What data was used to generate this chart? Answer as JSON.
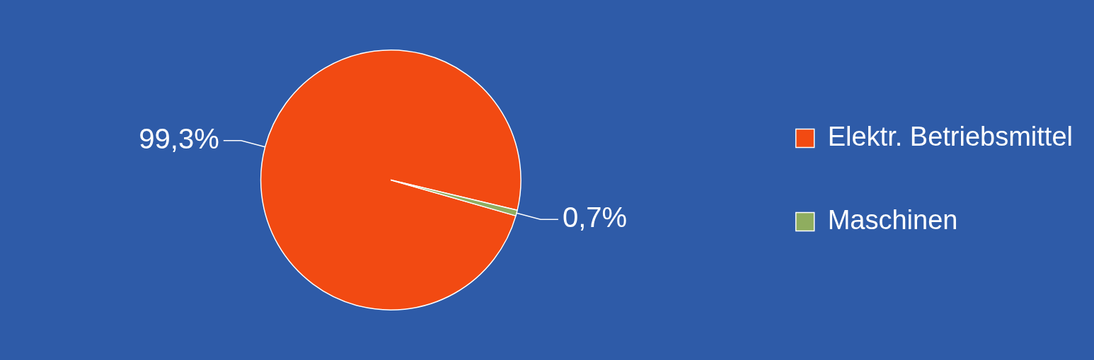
{
  "chart_data": {
    "type": "pie",
    "categories": [
      "Elektr. Betriebsmittel",
      "Maschinen"
    ],
    "values": [
      99.3,
      0.7
    ],
    "colors": [
      "#f24a12",
      "#8fad5f"
    ],
    "value_labels": [
      "99,3%",
      "0,7%"
    ],
    "legend": "right"
  }
}
